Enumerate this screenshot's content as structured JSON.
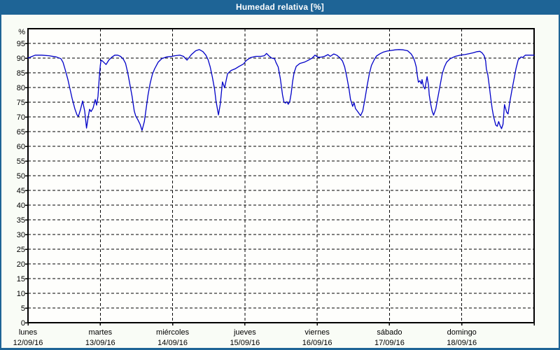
{
  "window": {
    "title": "Humedad relativa [%]"
  },
  "colors": {
    "titlebar_bg": "#1E6496",
    "frame_border": "#1E6496",
    "line": "#0000C8",
    "grid": "#000000",
    "plot_bg": "#FEFEFC",
    "page_bg": "#F9FCF6",
    "text": "#000000"
  },
  "chart_data": {
    "type": "line",
    "title": "Humedad relativa [%]",
    "ylabel": "%",
    "xlabel": "",
    "ylim": [
      0,
      100
    ],
    "y_tick_step": 5,
    "y_tick_max": 95,
    "grid": "dashed",
    "legend_position": "none",
    "x_range_days": 7,
    "x_days": [
      {
        "name": "lunes",
        "date": "12/09/16"
      },
      {
        "name": "martes",
        "date": "13/09/16"
      },
      {
        "name": "miércoles",
        "date": "14/09/16"
      },
      {
        "name": "jueves",
        "date": "15/09/16"
      },
      {
        "name": "viernes",
        "date": "16/09/16"
      },
      {
        "name": "sábado",
        "date": "17/09/16"
      },
      {
        "name": "domingo",
        "date": "18/09/16"
      }
    ],
    "series": [
      {
        "name": "Humedad relativa",
        "color": "#0000C8",
        "points": [
          [
            0,
            90
          ],
          [
            0.05,
            90.5
          ],
          [
            0.1,
            91
          ],
          [
            0.19,
            91
          ],
          [
            0.29,
            90.8
          ],
          [
            0.39,
            90.4
          ],
          [
            0.455,
            89.8
          ],
          [
            0.484,
            88.6
          ],
          [
            0.513,
            86.2
          ],
          [
            0.552,
            82.7
          ],
          [
            0.581,
            79.5
          ],
          [
            0.61,
            76.3
          ],
          [
            0.649,
            72.7
          ],
          [
            0.678,
            70.7
          ],
          [
            0.697,
            70.2
          ],
          [
            0.726,
            72.5
          ],
          [
            0.755,
            75.4
          ],
          [
            0.784,
            72
          ],
          [
            0.809,
            66.2
          ],
          [
            0.833,
            70
          ],
          [
            0.852,
            72.6
          ],
          [
            0.872,
            71.8
          ],
          [
            0.9,
            73
          ],
          [
            0.93,
            75.9
          ],
          [
            0.949,
            74
          ],
          [
            0.968,
            77
          ],
          [
            0.985,
            83
          ],
          [
            1.0,
            87.5
          ],
          [
            1.01,
            89.3
          ],
          [
            1.03,
            89
          ],
          [
            1.08,
            87.8
          ],
          [
            1.12,
            89.4
          ],
          [
            1.16,
            90.3
          ],
          [
            1.2,
            91
          ],
          [
            1.24,
            91
          ],
          [
            1.28,
            90.6
          ],
          [
            1.32,
            89.6
          ],
          [
            1.35,
            88.2
          ],
          [
            1.38,
            85
          ],
          [
            1.41,
            81
          ],
          [
            1.44,
            77
          ],
          [
            1.47,
            72
          ],
          [
            1.49,
            70.3
          ],
          [
            1.52,
            69
          ],
          [
            1.55,
            67.5
          ],
          [
            1.577,
            65.4
          ],
          [
            1.61,
            68.5
          ],
          [
            1.635,
            73
          ],
          [
            1.66,
            77.5
          ],
          [
            1.69,
            81.5
          ],
          [
            1.72,
            84.5
          ],
          [
            1.75,
            86.3
          ],
          [
            1.8,
            88.6
          ],
          [
            1.85,
            89.8
          ],
          [
            1.92,
            90.4
          ],
          [
            1.99,
            90.6
          ],
          [
            2.03,
            90.8
          ],
          [
            2.1,
            91
          ],
          [
            2.15,
            90.6
          ],
          [
            2.2,
            89.3
          ],
          [
            2.26,
            91.2
          ],
          [
            2.32,
            92.5
          ],
          [
            2.37,
            92.9
          ],
          [
            2.42,
            92.2
          ],
          [
            2.46,
            91
          ],
          [
            2.49,
            89.5
          ],
          [
            2.52,
            87
          ],
          [
            2.55,
            83.5
          ],
          [
            2.58,
            79.5
          ],
          [
            2.6,
            75.5
          ],
          [
            2.634,
            70.7
          ],
          [
            2.66,
            74.4
          ],
          [
            2.69,
            81.9
          ],
          [
            2.72,
            79.9
          ],
          [
            2.76,
            84.7
          ],
          [
            2.81,
            85.8
          ],
          [
            2.87,
            86.4
          ],
          [
            2.92,
            87.2
          ],
          [
            2.98,
            88
          ],
          [
            3.02,
            89.2
          ],
          [
            3.08,
            90.2
          ],
          [
            3.15,
            90.6
          ],
          [
            3.22,
            90.6
          ],
          [
            3.27,
            90.8
          ],
          [
            3.3,
            91.6
          ],
          [
            3.33,
            90.8
          ],
          [
            3.37,
            90
          ],
          [
            3.41,
            89.8
          ],
          [
            3.43,
            88.5
          ],
          [
            3.46,
            87
          ],
          [
            3.49,
            83
          ],
          [
            3.52,
            77.5
          ],
          [
            3.54,
            75.1
          ],
          [
            3.56,
            74.7
          ],
          [
            3.58,
            75.2
          ],
          [
            3.6,
            74.3
          ],
          [
            3.62,
            75.2
          ],
          [
            3.64,
            78
          ],
          [
            3.66,
            82
          ],
          [
            3.68,
            85
          ],
          [
            3.71,
            87.2
          ],
          [
            3.76,
            88.2
          ],
          [
            3.82,
            88.6
          ],
          [
            3.87,
            89.2
          ],
          [
            3.93,
            90
          ],
          [
            3.97,
            91
          ],
          [
            4.01,
            90.3
          ],
          [
            4.05,
            90.3
          ],
          [
            4.1,
            90.6
          ],
          [
            4.15,
            91.2
          ],
          [
            4.18,
            90.6
          ],
          [
            4.23,
            91.4
          ],
          [
            4.27,
            91
          ],
          [
            4.31,
            90.2
          ],
          [
            4.35,
            89
          ],
          [
            4.38,
            87
          ],
          [
            4.41,
            83.5
          ],
          [
            4.44,
            79.5
          ],
          [
            4.46,
            76
          ],
          [
            4.49,
            73.6
          ],
          [
            4.51,
            74.8
          ],
          [
            4.53,
            72.8
          ],
          [
            4.56,
            71.8
          ],
          [
            4.6,
            70.4
          ],
          [
            4.63,
            72
          ],
          [
            4.66,
            76
          ],
          [
            4.69,
            80.5
          ],
          [
            4.72,
            84.5
          ],
          [
            4.75,
            87.5
          ],
          [
            4.79,
            89.5
          ],
          [
            4.82,
            90.7
          ],
          [
            4.87,
            91.5
          ],
          [
            4.92,
            92.1
          ],
          [
            4.97,
            92.4
          ],
          [
            5.02,
            92.6
          ],
          [
            5.08,
            92.8
          ],
          [
            5.13,
            92.9
          ],
          [
            5.19,
            92.8
          ],
          [
            5.25,
            92.5
          ],
          [
            5.3,
            91.4
          ],
          [
            5.33,
            90.2
          ],
          [
            5.35,
            88.8
          ],
          [
            5.37,
            87
          ],
          [
            5.385,
            84
          ],
          [
            5.4,
            81.8
          ],
          [
            5.42,
            82.3
          ],
          [
            5.44,
            81.2
          ],
          [
            5.45,
            82.7
          ],
          [
            5.47,
            80.3
          ],
          [
            5.49,
            79.5
          ],
          [
            5.52,
            83.7
          ],
          [
            5.54,
            80.7
          ],
          [
            5.55,
            77.5
          ],
          [
            5.57,
            74.3
          ],
          [
            5.59,
            71.9
          ],
          [
            5.61,
            70.6
          ],
          [
            5.64,
            72.7
          ],
          [
            5.67,
            76.7
          ],
          [
            5.7,
            80.7
          ],
          [
            5.73,
            84.7
          ],
          [
            5.76,
            87
          ],
          [
            5.79,
            88.6
          ],
          [
            5.84,
            89.8
          ],
          [
            5.91,
            90.6
          ],
          [
            5.98,
            91
          ],
          [
            6.04,
            91.2
          ],
          [
            6.1,
            91.5
          ],
          [
            6.16,
            91.8
          ],
          [
            6.21,
            92.2
          ],
          [
            6.25,
            92.3
          ],
          [
            6.28,
            91.8
          ],
          [
            6.31,
            90.8
          ],
          [
            6.33,
            89
          ],
          [
            6.34,
            86.3
          ],
          [
            6.36,
            84.3
          ],
          [
            6.38,
            80.5
          ],
          [
            6.4,
            76.5
          ],
          [
            6.42,
            72.8
          ],
          [
            6.44,
            70
          ],
          [
            6.47,
            67.2
          ],
          [
            6.49,
            66.8
          ],
          [
            6.51,
            68.4
          ],
          [
            6.53,
            67
          ],
          [
            6.55,
            66
          ],
          [
            6.57,
            67.5
          ],
          [
            6.59,
            74.2
          ],
          [
            6.62,
            71.6
          ],
          [
            6.64,
            71
          ],
          [
            6.66,
            74.5
          ],
          [
            6.69,
            78.7
          ],
          [
            6.72,
            82.6
          ],
          [
            6.75,
            86.5
          ],
          [
            6.78,
            89.4
          ],
          [
            6.82,
            90.4
          ],
          [
            6.84,
            90.2
          ],
          [
            6.88,
            91
          ],
          [
            6.94,
            91
          ],
          [
            7.0,
            91
          ]
        ]
      }
    ]
  }
}
